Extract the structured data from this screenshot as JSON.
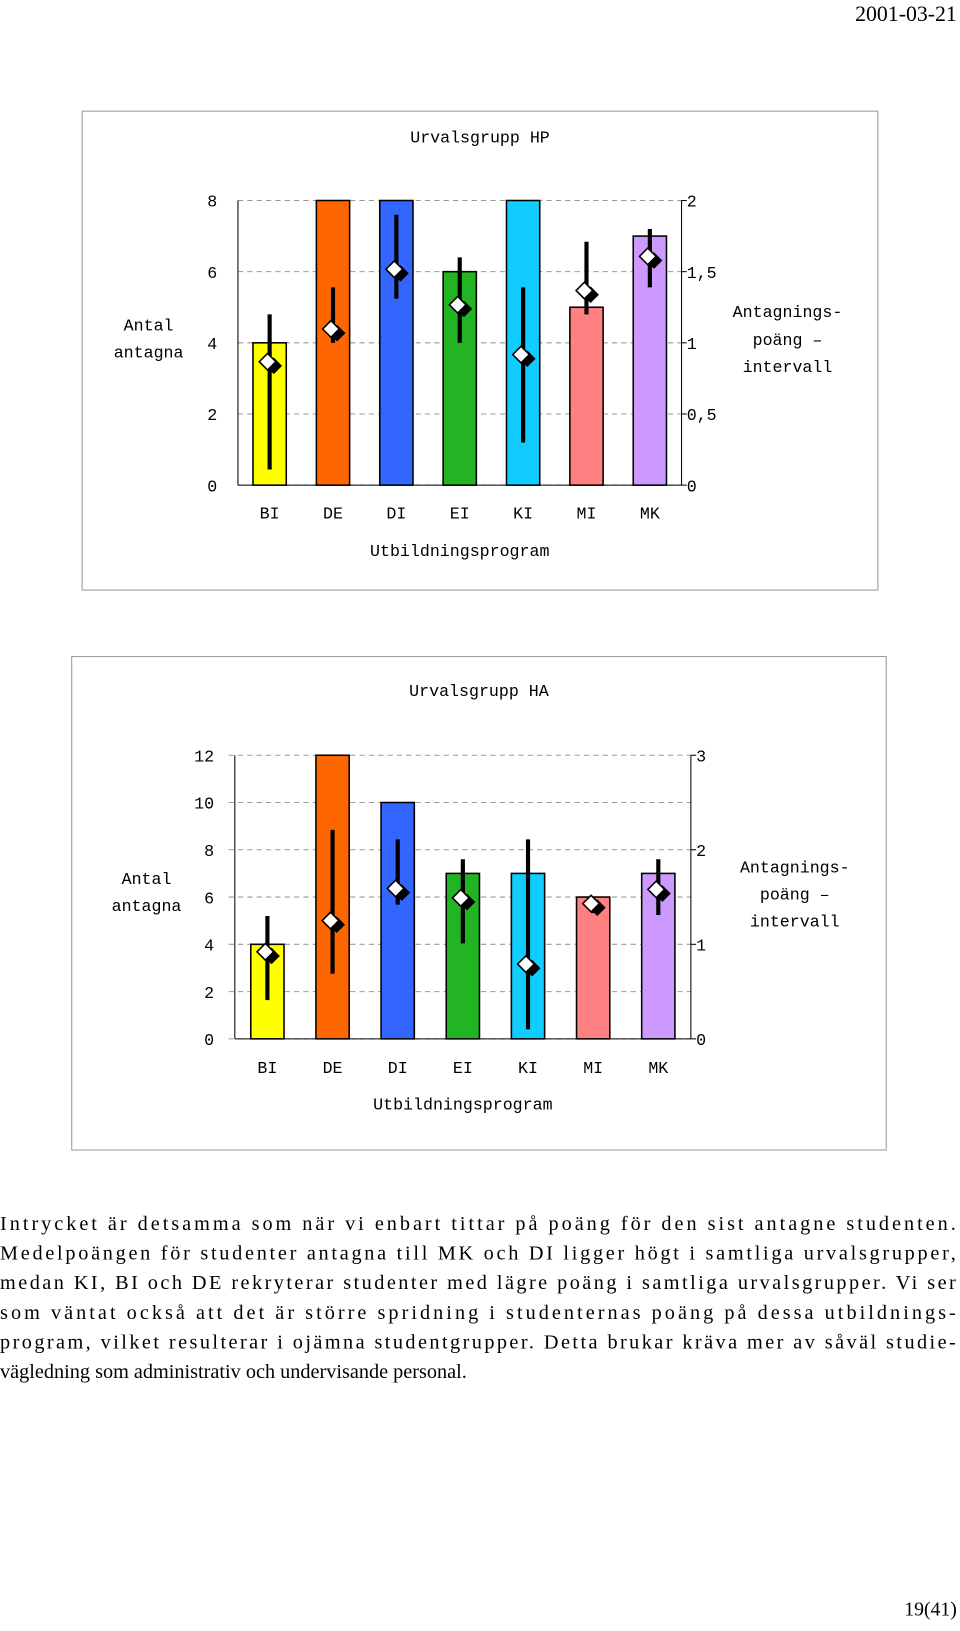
{
  "header": {
    "date": "2001-03-21"
  },
  "chart_data": [
    {
      "type": "bar",
      "title": "Urvalsgrupp HP",
      "xlabel": "Utbildningsprogram",
      "ylabel": [
        "Antal",
        "antagna"
      ],
      "y2label": [
        "Antagnings-",
        "poäng –",
        "intervall"
      ],
      "categories": [
        "BI",
        "DE",
        "DI",
        "EI",
        "KI",
        "MI",
        "MK"
      ],
      "values": [
        4,
        8,
        8,
        6,
        8,
        5,
        7
      ],
      "colors": [
        "#ffff00",
        "#ff6600",
        "#3366ff",
        "#22b422",
        "#11ccff",
        "#ff8080",
        "#cc99ff"
      ],
      "y2_low": [
        0.11,
        1.0,
        1.31,
        1.0,
        0.3,
        1.2,
        1.39
      ],
      "y2_high": [
        1.2,
        1.39,
        1.9,
        1.6,
        1.39,
        1.71,
        1.8
      ],
      "y2_mean": [
        0.86,
        1.09,
        1.51,
        1.26,
        0.91,
        1.36,
        1.6
      ],
      "ylim": [
        0,
        8
      ],
      "yticks": [
        0,
        2,
        4,
        6,
        8
      ],
      "y2lim": [
        0,
        2
      ],
      "y2ticks": [
        0,
        {
          "value": 0.5,
          "label": "0,5"
        },
        1,
        {
          "value": 1.5,
          "label": "1,5"
        },
        2
      ],
      "grid": true
    },
    {
      "type": "bar",
      "title": "Urvalsgrupp HA",
      "xlabel": "Utbildningsprogram",
      "ylabel": [
        "Antal",
        "antagna"
      ],
      "y2label": [
        "Antagnings-",
        "poäng –",
        "intervall"
      ],
      "categories": [
        "BI",
        "DE",
        "DI",
        "EI",
        "KI",
        "MI",
        "MK"
      ],
      "values": [
        4,
        12,
        10,
        7,
        7,
        6,
        7
      ],
      "colors": [
        "#ffff00",
        "#ff6600",
        "#3366ff",
        "#22b422",
        "#11ccff",
        "#ff8080",
        "#cc99ff"
      ],
      "y2_low": [
        0.41,
        0.69,
        1.42,
        1.01,
        0.1,
        1.33,
        1.31
      ],
      "y2_high": [
        1.3,
        2.21,
        2.11,
        1.9,
        2.11,
        1.49,
        1.9
      ],
      "y2_mean": [
        0.91,
        1.24,
        1.58,
        1.48,
        0.78,
        1.42,
        1.57
      ],
      "ylim": [
        0,
        12
      ],
      "yticks": [
        0,
        2,
        4,
        6,
        8,
        10,
        12
      ],
      "y2lim": [
        0,
        3
      ],
      "y2ticks": [
        0,
        1,
        2,
        3
      ],
      "grid": true
    }
  ],
  "body": {
    "lines": [
      "Intrycket är detsamma som när vi enbart tittar på poäng för den sist antagne studenten.",
      "Medelpoängen för studenter antagna till MK och DI ligger högt i samtliga urvalsgrupper,",
      "medan KI, BI och DE rekryterar studenter med lägre poäng i samtliga urvalsgrupper. Vi ser",
      "som väntat också att det är större spridning i studenternas poäng på dessa utbildnings-",
      "program, vilket resulterar i ojämna studentgrupper. Detta brukar kräva mer av såväl studie-",
      "vägledning som administrativ och undervisande personal."
    ]
  },
  "footer": {
    "page": "19(41)"
  }
}
